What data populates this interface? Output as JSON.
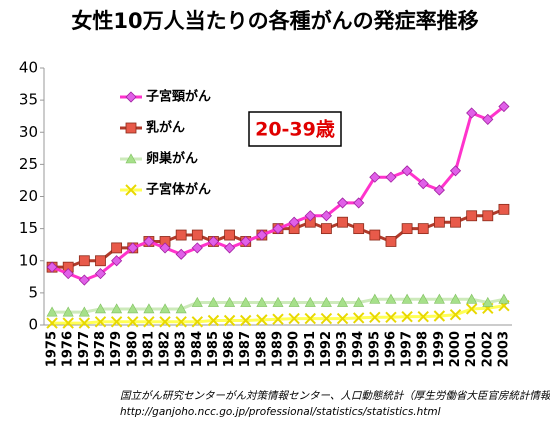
{
  "chart_data": {
    "type": "line",
    "title": "女性10万人当たりの各種がんの発症率推移",
    "annotation": "20-39歳",
    "source": [
      "国立がん研究センターがん対策情報センター、人口動態統計（厚生労働省大臣官房統計情報部）",
      "http://ganjoho.ncc.go.jp/professional/statistics/statistics.html"
    ],
    "categories": [
      "1975",
      "1976",
      "1977",
      "1978",
      "1979",
      "1980",
      "1981",
      "1982",
      "1983",
      "1984",
      "1985",
      "1986",
      "1987",
      "1988",
      "1989",
      "1990",
      "1991",
      "1992",
      "1993",
      "1994",
      "1995",
      "1996",
      "1997",
      "1998",
      "1999",
      "2000",
      "2001",
      "2002",
      "2003"
    ],
    "ylim": [
      0,
      40
    ],
    "yticks": [
      0,
      5,
      10,
      15,
      20,
      25,
      30,
      35,
      40
    ],
    "grid": false,
    "series": [
      {
        "name": "子宮頸がん",
        "color": "#ff33cc",
        "marker": "diamond",
        "marker_color": "#e060e8",
        "values": [
          9,
          8,
          7,
          8,
          10,
          12,
          13,
          12,
          11,
          12,
          13,
          12,
          13,
          14,
          15,
          16,
          17,
          17,
          19,
          19,
          23,
          23,
          24,
          22,
          21,
          24,
          33,
          32,
          34
        ]
      },
      {
        "name": "乳がん",
        "color": "#b03a2a",
        "marker": "square",
        "marker_color": "#e85a4a",
        "values": [
          9,
          9,
          10,
          10,
          12,
          12,
          13,
          13,
          14,
          14,
          13,
          14,
          13,
          14,
          15,
          15,
          16,
          15,
          16,
          15,
          14,
          13,
          15,
          15,
          16,
          16,
          17,
          17,
          18
        ]
      },
      {
        "name": "卵巣がん",
        "color": "#cdeabb",
        "marker": "triangle",
        "marker_color": "#a6e08a",
        "values": [
          2,
          2,
          2,
          2.5,
          2.5,
          2.5,
          2.5,
          2.5,
          2.5,
          3.5,
          3.5,
          3.5,
          3.5,
          3.5,
          3.5,
          3.5,
          3.5,
          3.5,
          3.5,
          3.5,
          4,
          4,
          4,
          4,
          4,
          4,
          4,
          3.5,
          4
        ]
      },
      {
        "name": "子宮体がん",
        "color": "#ffff55",
        "marker": "x",
        "marker_color": "#e8d800",
        "values": [
          0.3,
          0.3,
          0.3,
          0.5,
          0.5,
          0.5,
          0.5,
          0.5,
          0.5,
          0.5,
          0.7,
          0.7,
          0.7,
          0.8,
          0.9,
          1,
          1,
          1,
          1,
          1.1,
          1.2,
          1.2,
          1.3,
          1.3,
          1.4,
          1.6,
          2.5,
          2.6,
          3
        ]
      }
    ]
  }
}
